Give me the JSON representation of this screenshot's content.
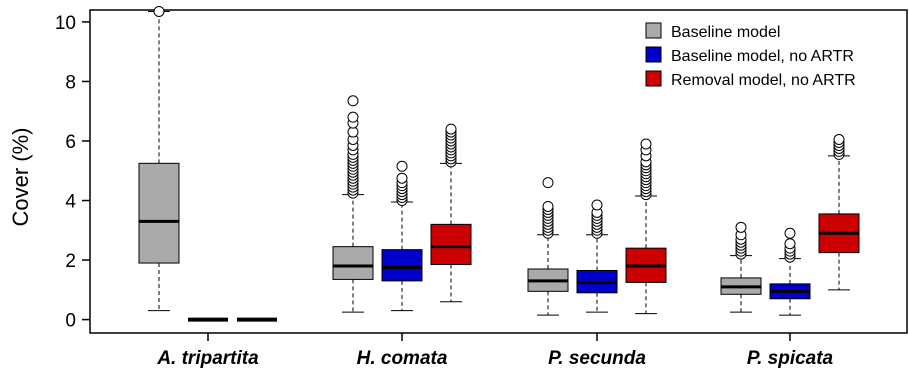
{
  "chart_data": {
    "type": "box",
    "ylabel": "Cover (%)",
    "xlabel": "",
    "ylim": [
      -0.45,
      10.4
    ],
    "yticks": [
      0,
      2,
      4,
      6,
      8,
      10
    ],
    "categories": [
      "A. tripartita",
      "H. comata",
      "P. secunda",
      "P. spicata"
    ],
    "legend_position": "top-right",
    "series": [
      {
        "name": "Baseline model",
        "color": "#aaaaaa",
        "boxes": [
          {
            "category": "A. tripartita",
            "whisker_low": 0.3,
            "q1": 1.9,
            "median": 3.3,
            "q3": 5.25,
            "whisker_high": 10.35,
            "outliers": [
              10.35
            ]
          },
          {
            "category": "H. comata",
            "whisker_low": 0.25,
            "q1": 1.35,
            "median": 1.8,
            "q3": 2.45,
            "whisker_high": 4.2,
            "outliers": [
              4.25,
              4.35,
              4.45,
              4.55,
              4.65,
              4.75,
              4.85,
              4.95,
              5.05,
              5.15,
              5.25,
              5.35,
              5.45,
              5.55,
              5.7,
              5.85,
              6.05,
              6.3,
              6.6,
              6.8,
              7.35
            ]
          },
          {
            "category": "P. secunda",
            "whisker_low": 0.15,
            "q1": 0.95,
            "median": 1.3,
            "q3": 1.7,
            "whisker_high": 2.85,
            "outliers": [
              2.9,
              3.0,
              3.1,
              3.2,
              3.3,
              3.4,
              3.5,
              3.6,
              3.7,
              3.8,
              4.6
            ]
          },
          {
            "category": "P. spicata",
            "whisker_low": 0.25,
            "q1": 0.85,
            "median": 1.1,
            "q3": 1.4,
            "whisker_high": 2.15,
            "outliers": [
              2.2,
              2.3,
              2.4,
              2.5,
              2.6,
              2.7,
              2.85,
              3.1
            ]
          }
        ]
      },
      {
        "name": "Baseline model, no ARTR",
        "color": "#0000cc",
        "boxes": [
          {
            "category": "A. tripartita",
            "whisker_low": 0,
            "q1": 0,
            "median": 0,
            "q3": 0,
            "whisker_high": 0,
            "outliers": []
          },
          {
            "category": "H. comata",
            "whisker_low": 0.3,
            "q1": 1.3,
            "median": 1.75,
            "q3": 2.35,
            "whisker_high": 3.95,
            "outliers": [
              4.0,
              4.1,
              4.2,
              4.3,
              4.4,
              4.5,
              4.6,
              4.75,
              5.15
            ]
          },
          {
            "category": "P. secunda",
            "whisker_low": 0.25,
            "q1": 0.9,
            "median": 1.25,
            "q3": 1.65,
            "whisker_high": 2.85,
            "outliers": [
              2.9,
              3.0,
              3.1,
              3.2,
              3.3,
              3.4,
              3.5,
              3.6,
              3.85
            ]
          },
          {
            "category": "P. spicata",
            "whisker_low": 0.15,
            "q1": 0.7,
            "median": 0.95,
            "q3": 1.2,
            "whisker_high": 2.05,
            "outliers": [
              2.1,
              2.2,
              2.3,
              2.4,
              2.55,
              2.9
            ]
          }
        ]
      },
      {
        "name": "Removal model, no ARTR",
        "color": "#cc0000",
        "boxes": [
          {
            "category": "A. tripartita",
            "whisker_low": 0,
            "q1": 0,
            "median": 0,
            "q3": 0,
            "whisker_high": 0,
            "outliers": []
          },
          {
            "category": "H. comata",
            "whisker_low": 0.6,
            "q1": 1.85,
            "median": 2.45,
            "q3": 3.2,
            "whisker_high": 5.25,
            "outliers": [
              5.3,
              5.4,
              5.5,
              5.6,
              5.7,
              5.8,
              5.9,
              6.0,
              6.1,
              6.2,
              6.3,
              6.4
            ]
          },
          {
            "category": "P. secunda",
            "whisker_low": 0.2,
            "q1": 1.25,
            "median": 1.8,
            "q3": 2.4,
            "whisker_high": 4.15,
            "outliers": [
              4.2,
              4.3,
              4.4,
              4.5,
              4.6,
              4.7,
              4.8,
              4.9,
              5.0,
              5.1,
              5.2,
              5.3,
              5.5,
              5.7,
              5.9
            ]
          },
          {
            "category": "P. spicata",
            "whisker_low": 1.0,
            "q1": 2.25,
            "median": 2.9,
            "q3": 3.55,
            "whisker_high": 5.5,
            "outliers": [
              5.55,
              5.65,
              5.75,
              5.85,
              5.95,
              6.05
            ]
          }
        ]
      }
    ]
  }
}
